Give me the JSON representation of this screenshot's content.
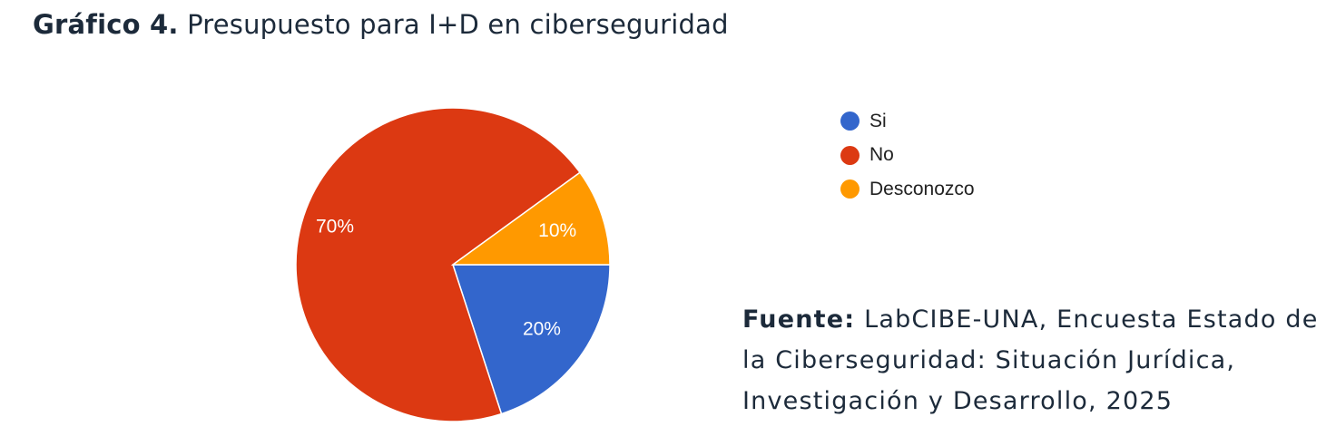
{
  "title": {
    "bold": "Gráfico 4.",
    "text": "Presupuesto para I+D en ciberseguridad"
  },
  "chart_data": {
    "type": "pie",
    "labels": [
      "Si",
      "No",
      "Desconozco"
    ],
    "values": [
      20,
      70,
      10
    ],
    "slice_labels": [
      "20%",
      "70%",
      "10%"
    ],
    "colors": [
      "#3366cc",
      "#dc3912",
      "#ff9900"
    ],
    "legend_position": "right"
  },
  "source": {
    "label": "Fuente:",
    "text": "LabCIBE-UNA, Encuesta Estado de la Ciberseguridad: Situación Jurídica, Investigación y Desarrollo, 2025"
  }
}
